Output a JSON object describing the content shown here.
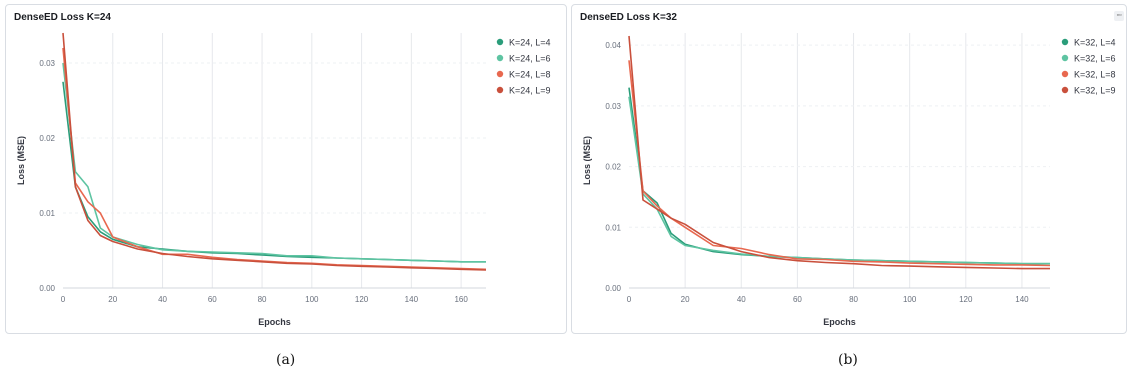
{
  "panels": [
    {
      "title": "DenseED Loss K=24",
      "caption": "(a)"
    },
    {
      "title": "DenseED Loss K=32",
      "caption": "(b)"
    }
  ],
  "colors": {
    "green_dark": "#2a9d7a",
    "green_light": "#5ec4a2",
    "red_light": "#e8684f",
    "red_dark": "#c9503c",
    "grid": "#e6e8ec",
    "axis_text": "#69707d"
  },
  "chart_data": [
    {
      "type": "line",
      "title": "DenseED Loss K=24",
      "xlabel": "Epochs",
      "ylabel": "Loss (MSE)",
      "xlim": [
        0,
        170
      ],
      "ylim": [
        0,
        0.034
      ],
      "xticks": [
        0,
        20,
        40,
        60,
        80,
        100,
        120,
        140,
        160
      ],
      "yticks": [
        0.0,
        0.01,
        0.02,
        0.03
      ],
      "ytick_labels": [
        "0.00",
        "0.01",
        "0.02",
        "0.03"
      ],
      "legend_position": "top-right",
      "grid": "vertical",
      "series": [
        {
          "name": "K=24, L=4",
          "color": "#2a9d7a",
          "x": [
            0,
            5,
            10,
            15,
            20,
            30,
            40,
            50,
            60,
            70,
            80,
            90,
            100,
            110,
            120,
            130,
            140,
            150,
            160,
            170
          ],
          "y": [
            0.0275,
            0.0135,
            0.0095,
            0.0075,
            0.0065,
            0.0055,
            0.0052,
            0.0049,
            0.0047,
            0.0046,
            0.0044,
            0.0042,
            0.0041,
            0.004,
            0.0039,
            0.0038,
            0.0037,
            0.0036,
            0.0035,
            0.0035
          ]
        },
        {
          "name": "K=24, L=6",
          "color": "#5ec4a2",
          "x": [
            0,
            5,
            10,
            15,
            20,
            30,
            40,
            50,
            60,
            70,
            80,
            90,
            100,
            110,
            120,
            130,
            140,
            150,
            160,
            170
          ],
          "y": [
            0.03,
            0.0155,
            0.0135,
            0.008,
            0.0068,
            0.0058,
            0.0051,
            0.0049,
            0.0048,
            0.0047,
            0.0046,
            0.0043,
            0.0043,
            0.004,
            0.0039,
            0.0038,
            0.0037,
            0.0036,
            0.0035,
            0.0035
          ]
        },
        {
          "name": "K=24, L=8",
          "color": "#e8684f",
          "x": [
            0,
            5,
            10,
            15,
            20,
            30,
            40,
            50,
            60,
            70,
            80,
            90,
            100,
            110,
            120,
            130,
            140,
            150,
            160,
            170
          ],
          "y": [
            0.032,
            0.014,
            0.0115,
            0.01,
            0.0068,
            0.0055,
            0.0045,
            0.0045,
            0.0041,
            0.0038,
            0.0036,
            0.0034,
            0.0033,
            0.0031,
            0.003,
            0.0029,
            0.0028,
            0.0027,
            0.0026,
            0.0025
          ]
        },
        {
          "name": "K=24, L=9",
          "color": "#c9503c",
          "x": [
            0,
            5,
            10,
            15,
            20,
            30,
            40,
            50,
            60,
            70,
            80,
            90,
            100,
            110,
            120,
            130,
            140,
            150,
            160,
            170
          ],
          "y": [
            0.034,
            0.0135,
            0.009,
            0.007,
            0.0062,
            0.0052,
            0.0046,
            0.0042,
            0.0039,
            0.0037,
            0.0035,
            0.0033,
            0.0032,
            0.003,
            0.0029,
            0.0028,
            0.0027,
            0.0026,
            0.0025,
            0.0024
          ]
        }
      ]
    },
    {
      "type": "line",
      "title": "DenseED Loss K=32",
      "xlabel": "Epochs",
      "ylabel": "Loss (MSE)",
      "xlim": [
        0,
        150
      ],
      "ylim": [
        0,
        0.042
      ],
      "xticks": [
        0,
        20,
        40,
        60,
        80,
        100,
        120,
        140
      ],
      "yticks": [
        0.0,
        0.01,
        0.02,
        0.03,
        0.04
      ],
      "ytick_labels": [
        "0.00",
        "0.01",
        "0.02",
        "0.03",
        "0.04"
      ],
      "legend_position": "top-right",
      "grid": "vertical",
      "series": [
        {
          "name": "K=32, L=4",
          "color": "#2a9d7a",
          "x": [
            0,
            5,
            10,
            15,
            20,
            30,
            40,
            50,
            60,
            70,
            80,
            90,
            100,
            110,
            120,
            130,
            140,
            150
          ],
          "y": [
            0.033,
            0.016,
            0.014,
            0.009,
            0.0072,
            0.006,
            0.0055,
            0.0052,
            0.005,
            0.0048,
            0.0046,
            0.0045,
            0.0044,
            0.0043,
            0.0042,
            0.0041,
            0.004,
            0.004
          ]
        },
        {
          "name": "K=32, L=6",
          "color": "#5ec4a2",
          "x": [
            0,
            5,
            10,
            15,
            20,
            30,
            40,
            50,
            60,
            70,
            80,
            90,
            100,
            110,
            120,
            130,
            140,
            150
          ],
          "y": [
            0.0315,
            0.0155,
            0.013,
            0.0085,
            0.007,
            0.0062,
            0.0056,
            0.0052,
            0.005,
            0.0048,
            0.0046,
            0.0045,
            0.0044,
            0.0043,
            0.0042,
            0.0041,
            0.004,
            0.004
          ]
        },
        {
          "name": "K=32, L=8",
          "color": "#e8684f",
          "x": [
            0,
            5,
            10,
            15,
            20,
            30,
            40,
            50,
            60,
            70,
            80,
            90,
            100,
            110,
            120,
            130,
            140,
            150
          ],
          "y": [
            0.0375,
            0.016,
            0.0135,
            0.0115,
            0.01,
            0.007,
            0.0065,
            0.0055,
            0.0048,
            0.0047,
            0.0044,
            0.0043,
            0.0041,
            0.004,
            0.0039,
            0.0038,
            0.0038,
            0.0037
          ]
        },
        {
          "name": "K=32, L=9",
          "color": "#c9503c",
          "x": [
            0,
            5,
            10,
            15,
            20,
            30,
            40,
            50,
            60,
            70,
            80,
            90,
            100,
            110,
            120,
            130,
            140,
            150
          ],
          "y": [
            0.0415,
            0.0145,
            0.013,
            0.0115,
            0.0105,
            0.0075,
            0.006,
            0.005,
            0.0045,
            0.0042,
            0.004,
            0.0037,
            0.0036,
            0.0035,
            0.0034,
            0.0033,
            0.0032,
            0.0032
          ]
        }
      ]
    }
  ]
}
